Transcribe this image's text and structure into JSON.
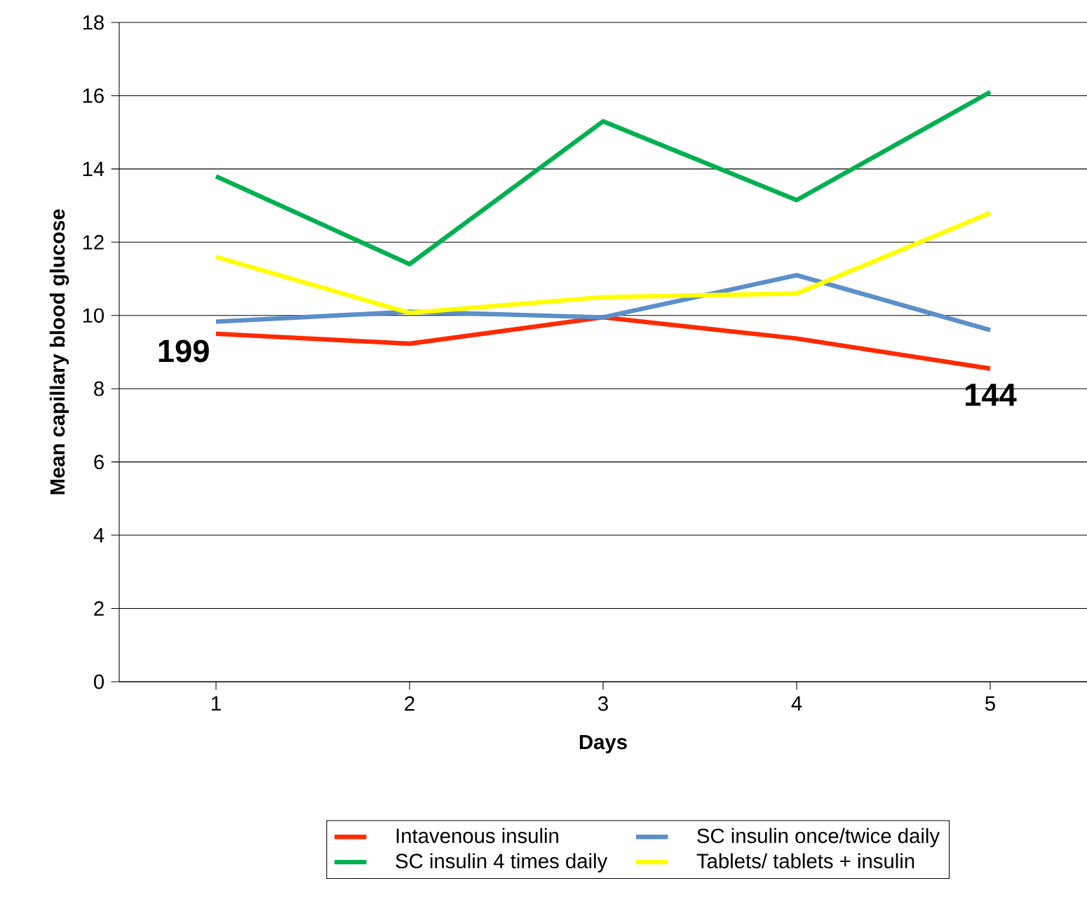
{
  "chart_data": {
    "type": "line",
    "xlabel": "Days",
    "ylabel": "Mean capillary blood glucose",
    "x": [
      1,
      2,
      3,
      4,
      5
    ],
    "series": [
      {
        "name": "Intavenous insulin",
        "color": "#ff2a00",
        "values": [
          9.5,
          9.23,
          9.95,
          9.37,
          8.55
        ]
      },
      {
        "name": "SC insulin once/twice daily",
        "color": "#5b8fc9",
        "values": [
          9.83,
          10.1,
          9.95,
          11.1,
          9.6
        ]
      },
      {
        "name": "SC insulin 4 times daily",
        "color": "#00b050",
        "values": [
          13.8,
          11.4,
          15.3,
          13.15,
          16.1
        ]
      },
      {
        "name": "Tablets/ tablets + insulin",
        "color": "#ffff00",
        "values": [
          11.6,
          10.07,
          10.5,
          10.6,
          12.8
        ]
      }
    ],
    "xlim": [
      0.5,
      5.5
    ],
    "xticks": [
      1,
      2,
      3,
      4,
      5
    ],
    "ylim": [
      0,
      18
    ],
    "yticks": [
      0,
      2,
      4,
      6,
      8,
      10,
      12,
      14,
      16,
      18
    ],
    "grid": "y",
    "legend": "bottom",
    "annotations": [
      {
        "text": "199",
        "x": 1,
        "y": 9.5
      },
      {
        "text": "144",
        "x": 5,
        "y": 8.55
      }
    ]
  }
}
